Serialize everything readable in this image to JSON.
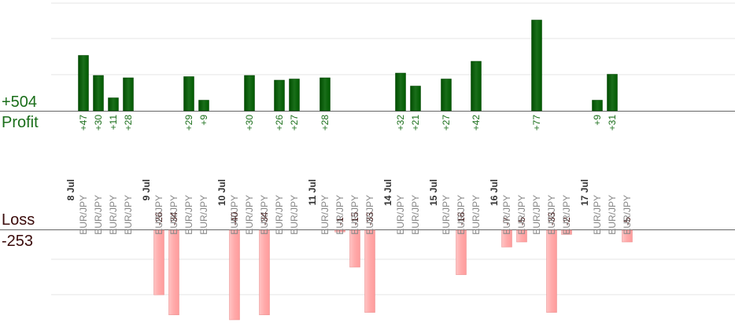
{
  "colors": {
    "profit_bar": "#1a6e1a",
    "profit_text": "#1a6e1a",
    "loss_bar": "#ffaaaa",
    "loss_text": "#3a0a0a",
    "date_text": "#333333",
    "pair_text": "#888888",
    "axis": "#666666",
    "grid": "#e6e6e6"
  },
  "labels": {
    "profit_total": "+504",
    "profit_word": "Profit",
    "loss_word": "Loss",
    "loss_total": "-253"
  },
  "chart_data": {
    "type": "bar",
    "profit_total": 504,
    "loss_total": -253,
    "days": [
      {
        "date": "8 Jul",
        "trades": [
          {
            "pair": "EUR/JPY",
            "value": 47
          },
          {
            "pair": "EUR/JPY",
            "value": 30
          },
          {
            "pair": "EUR/JPY",
            "value": 11
          },
          {
            "pair": "EUR/JPY",
            "value": 28
          }
        ]
      },
      {
        "date": "9 Jul",
        "trades": [
          {
            "pair": "EUR/JPY",
            "value": -26
          },
          {
            "pair": "EUR/JPY",
            "value": -34
          },
          {
            "pair": "EUR/JPY",
            "value": 29
          },
          {
            "pair": "EUR/JPY",
            "value": 9
          }
        ]
      },
      {
        "date": "10 Jul",
        "trades": [
          {
            "pair": "EUR/JPY",
            "value": -40
          },
          {
            "pair": "EUR/JPY",
            "value": 30
          },
          {
            "pair": "EUR/JPY",
            "value": -34
          },
          {
            "pair": "EUR/JPY",
            "value": 26
          },
          {
            "pair": "EUR/JPY",
            "value": 27
          }
        ]
      },
      {
        "date": "11 Jul",
        "trades": [
          {
            "pair": "EUR/JPY",
            "value": 28
          },
          {
            "pair": "EUR/JPY",
            "value": -1
          },
          {
            "pair": "EUR/JPY",
            "value": -15
          },
          {
            "pair": "EUR/JPY",
            "value": -33
          }
        ]
      },
      {
        "date": "14 Jul",
        "trades": [
          {
            "pair": "EUR/JPY",
            "value": 32
          },
          {
            "pair": "EUR/JPY",
            "value": 21
          }
        ]
      },
      {
        "date": "15 Jul",
        "trades": [
          {
            "pair": "EUR/JPY",
            "value": 27
          },
          {
            "pair": "EUR/JPY",
            "value": -18
          },
          {
            "pair": "EUR/JPY",
            "value": 42
          }
        ]
      },
      {
        "date": "16 Jul",
        "trades": [
          {
            "pair": "EUR/JPY",
            "value": -7
          },
          {
            "pair": "EUR/JPY",
            "value": -5
          },
          {
            "pair": "EUR/JPY",
            "value": 77
          },
          {
            "pair": "EUR/JPY",
            "value": -33
          },
          {
            "pair": "EUR/JPY",
            "value": -2
          }
        ]
      },
      {
        "date": "17 Jul",
        "trades": [
          {
            "pair": "EUR/JPY",
            "value": 9
          },
          {
            "pair": "EUR/JPY",
            "value": 31
          },
          {
            "pair": "EUR/JPY",
            "value": -5
          }
        ]
      }
    ]
  }
}
